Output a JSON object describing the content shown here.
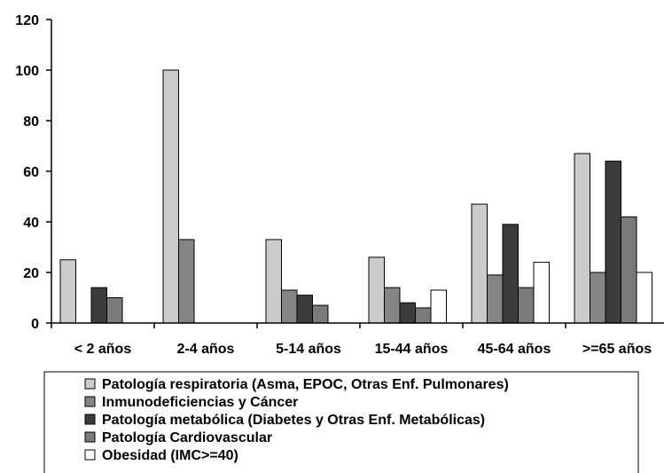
{
  "chart_data": {
    "type": "bar",
    "title": "",
    "xlabel": "",
    "ylabel": "",
    "ylim": [
      0,
      120
    ],
    "yticks": [
      0,
      20,
      40,
      60,
      80,
      100,
      120
    ],
    "grid": false,
    "legend_position": "bottom",
    "categories": [
      "< 2 años",
      "2-4 años",
      "5-14 años",
      "15-44 años",
      "45-64 años",
      ">=65 años"
    ],
    "series": [
      {
        "name": "Patología respiratoria (Asma, EPOC, Otras Enf. Pulmonares)",
        "color": "#cccccc",
        "values": [
          25,
          100,
          33,
          26,
          47,
          67
        ]
      },
      {
        "name": "Inmunodeficiencias y Cáncer",
        "color": "#858585",
        "values": [
          0,
          33,
          13,
          14,
          19,
          20
        ]
      },
      {
        "name": "Patología metabólica (Diabetes y Otras Enf. Metabólicas)",
        "color": "#3c3c3c",
        "values": [
          14,
          0,
          11,
          8,
          39,
          64
        ]
      },
      {
        "name": "Patología Cardiovascular",
        "color": "#7a7a7a",
        "values": [
          10,
          0,
          7,
          6,
          14,
          42
        ]
      },
      {
        "name": "Obesidad (IMC>=40)",
        "color": "#ffffff",
        "values": [
          0,
          0,
          0,
          13,
          24,
          20
        ]
      }
    ]
  }
}
